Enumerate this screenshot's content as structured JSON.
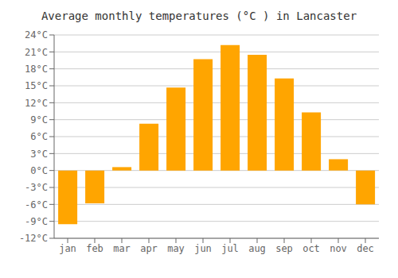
{
  "chart_data": {
    "type": "bar",
    "title": "Average monthly temperatures (°C ) in Lancaster",
    "categories": [
      "jan",
      "feb",
      "mar",
      "apr",
      "may",
      "jun",
      "jul",
      "aug",
      "sep",
      "oct",
      "nov",
      "dec"
    ],
    "values": [
      -9.5,
      -5.8,
      0.6,
      8.3,
      14.7,
      19.7,
      22.2,
      20.5,
      16.3,
      10.3,
      2.0,
      -6.0
    ],
    "color": "#FFA500",
    "ylim": [
      -12,
      24
    ],
    "yticks": [
      {
        "value": -12,
        "label": "-12°C"
      },
      {
        "value": -9,
        "label": "-9°C"
      },
      {
        "value": -6,
        "label": "-6°C"
      },
      {
        "value": -3,
        "label": "-3°C"
      },
      {
        "value": 0,
        "label": "0°C"
      },
      {
        "value": 3,
        "label": "3°C"
      },
      {
        "value": 6,
        "label": "6°C"
      },
      {
        "value": 9,
        "label": "9°C"
      },
      {
        "value": 12,
        "label": "12°C"
      },
      {
        "value": 15,
        "label": "15°C"
      },
      {
        "value": 18,
        "label": "18°C"
      },
      {
        "value": 21,
        "label": "21°C"
      },
      {
        "value": 24,
        "label": "24°C"
      }
    ],
    "grid": true
  }
}
